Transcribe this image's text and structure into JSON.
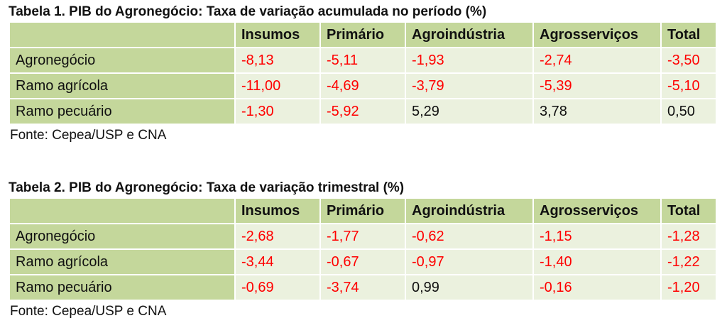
{
  "tables": [
    {
      "title": "Tabela 1. PIB do Agronegócio: Taxa de variação acumulada no período (%)",
      "columns": [
        "Insumos",
        "Primário",
        "Agroindústria",
        "Agrosserviços",
        "Total"
      ],
      "rows": [
        {
          "label": "Agronegócio",
          "cells": [
            "-8,13",
            "-5,11",
            "-1,93",
            "-2,74",
            "-3,50"
          ]
        },
        {
          "label": "Ramo agrícola",
          "cells": [
            "-11,00",
            "-4,69",
            "-3,79",
            "-5,39",
            "-5,10"
          ]
        },
        {
          "label": "Ramo pecuário",
          "cells": [
            "-1,30",
            "-5,92",
            "5,29",
            "3,78",
            "0,50"
          ]
        }
      ],
      "source": "Fonte: Cepea/USP e CNA"
    },
    {
      "title": "Tabela 2. PIB do Agronegócio: Taxa de variação trimestral (%)",
      "columns": [
        "Insumos",
        "Primário",
        "Agroindústria",
        "Agrosserviços",
        "Total"
      ],
      "rows": [
        {
          "label": "Agronegócio",
          "cells": [
            "-2,68",
            "-1,77",
            "-0,62",
            "-1,15",
            "-1,28"
          ]
        },
        {
          "label": "Ramo agrícola",
          "cells": [
            "-3,44",
            "-0,67",
            "-0,97",
            "-1,40",
            "-1,22"
          ]
        },
        {
          "label": "Ramo pecuário",
          "cells": [
            "-0,69",
            "-3,74",
            "0,99",
            "-0,16",
            "-1,20"
          ]
        }
      ],
      "source": "Fonte: Cepea/USP e CNA"
    }
  ],
  "negative_color": "#ff0000"
}
